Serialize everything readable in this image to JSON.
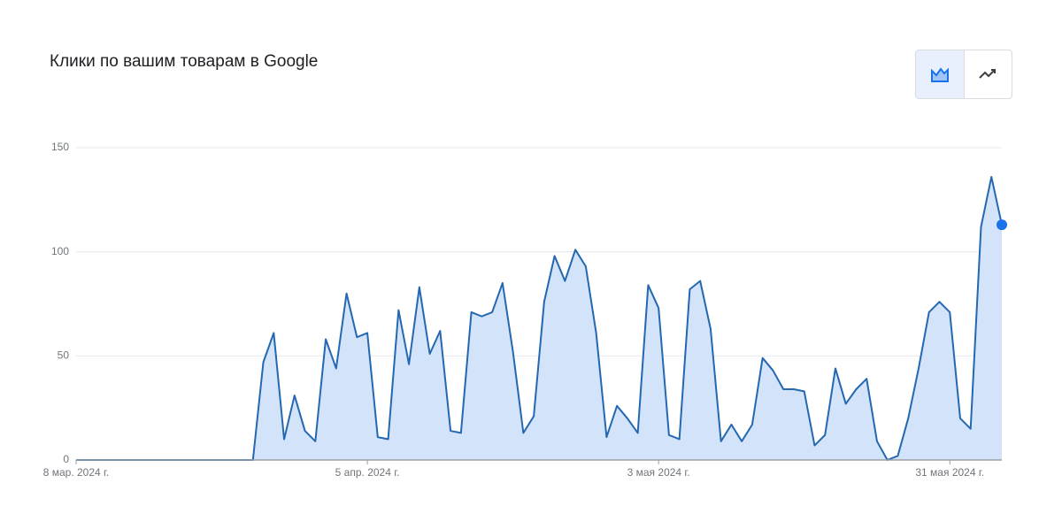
{
  "chart_data": {
    "type": "area",
    "title": "Клики по вашим товарам в Google",
    "x": [
      "2024-03-08",
      "2024-03-09",
      "2024-03-10",
      "2024-03-11",
      "2024-03-12",
      "2024-03-13",
      "2024-03-14",
      "2024-03-15",
      "2024-03-16",
      "2024-03-17",
      "2024-03-18",
      "2024-03-19",
      "2024-03-20",
      "2024-03-21",
      "2024-03-22",
      "2024-03-23",
      "2024-03-24",
      "2024-03-25",
      "2024-03-26",
      "2024-03-27",
      "2024-03-28",
      "2024-03-29",
      "2024-03-30",
      "2024-03-31",
      "2024-04-01",
      "2024-04-02",
      "2024-04-03",
      "2024-04-04",
      "2024-04-05",
      "2024-04-06",
      "2024-04-07",
      "2024-04-08",
      "2024-04-09",
      "2024-04-10",
      "2024-04-11",
      "2024-04-12",
      "2024-04-13",
      "2024-04-14",
      "2024-04-15",
      "2024-04-16",
      "2024-04-17",
      "2024-04-18",
      "2024-04-19",
      "2024-04-20",
      "2024-04-21",
      "2024-04-22",
      "2024-04-23",
      "2024-04-24",
      "2024-04-25",
      "2024-04-26",
      "2024-04-27",
      "2024-04-28",
      "2024-04-29",
      "2024-04-30",
      "2024-05-01",
      "2024-05-02",
      "2024-05-03",
      "2024-05-04",
      "2024-05-05",
      "2024-05-06",
      "2024-05-07",
      "2024-05-08",
      "2024-05-09",
      "2024-05-10",
      "2024-05-11",
      "2024-05-12",
      "2024-05-13",
      "2024-05-14",
      "2024-05-15",
      "2024-05-16",
      "2024-05-17",
      "2024-05-18",
      "2024-05-19",
      "2024-05-20",
      "2024-05-21",
      "2024-05-22",
      "2024-05-23",
      "2024-05-24",
      "2024-05-25",
      "2024-05-26",
      "2024-05-27",
      "2024-05-28",
      "2024-05-29",
      "2024-05-30",
      "2024-05-31",
      "2024-06-01",
      "2024-06-02",
      "2024-06-03",
      "2024-06-04",
      "2024-06-05"
    ],
    "values": [
      0,
      0,
      0,
      0,
      0,
      0,
      0,
      0,
      0,
      0,
      0,
      0,
      0,
      0,
      0,
      0,
      0,
      0,
      47,
      61,
      10,
      31,
      14,
      9,
      58,
      44,
      80,
      59,
      61,
      11,
      10,
      72,
      46,
      83,
      51,
      62,
      14,
      13,
      71,
      69,
      71,
      85,
      52,
      13,
      21,
      76,
      98,
      86,
      101,
      93,
      61,
      11,
      26,
      20,
      13,
      84,
      73,
      12,
      10,
      82,
      86,
      63,
      9,
      17,
      9,
      17,
      49,
      43,
      34,
      34,
      33,
      7,
      12,
      44,
      27,
      34,
      39,
      9,
      0,
      2,
      20,
      44,
      71,
      76,
      71,
      20,
      15,
      112,
      136,
      113
    ],
    "color": "#2368b0",
    "fill": "#d3e3fa",
    "highlight_color": "#1a73e8",
    "ylim": [
      0,
      150
    ],
    "yticks": [
      0,
      50,
      100,
      150
    ],
    "grid": true,
    "xticks": [
      {
        "value": "2024-03-08",
        "label": "8 мар. 2024 г."
      },
      {
        "value": "2024-04-05",
        "label": "5 апр. 2024 г."
      },
      {
        "value": "2024-05-03",
        "label": "3 мая 2024 г."
      },
      {
        "value": "2024-05-31",
        "label": "31 мая 2024 г."
      }
    ]
  }
}
